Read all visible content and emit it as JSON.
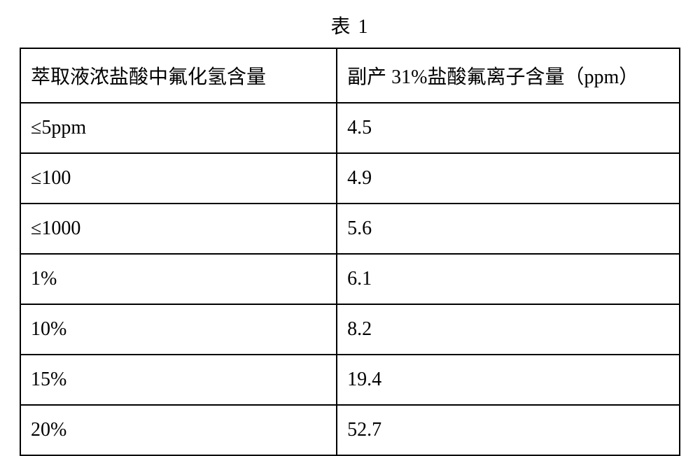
{
  "title": "表 1",
  "table": {
    "type": "table",
    "background_color": "#ffffff",
    "border_color": "#000000",
    "text_color": "#000000",
    "cell_fontsize": 28,
    "columns": [
      "萃取液浓盐酸中氟化氢含量",
      "副产 31%盐酸氟离子含量（ppm）"
    ],
    "rows": [
      [
        "≤5ppm",
        "4.5"
      ],
      [
        "≤100",
        "4.9"
      ],
      [
        "≤1000",
        "5.6"
      ],
      [
        "1%",
        "6.1"
      ],
      [
        "10%",
        "8.2"
      ],
      [
        "15%",
        "19.4"
      ],
      [
        "20%",
        "52.7"
      ]
    ],
    "column_widths_pct": [
      48,
      52
    ]
  }
}
